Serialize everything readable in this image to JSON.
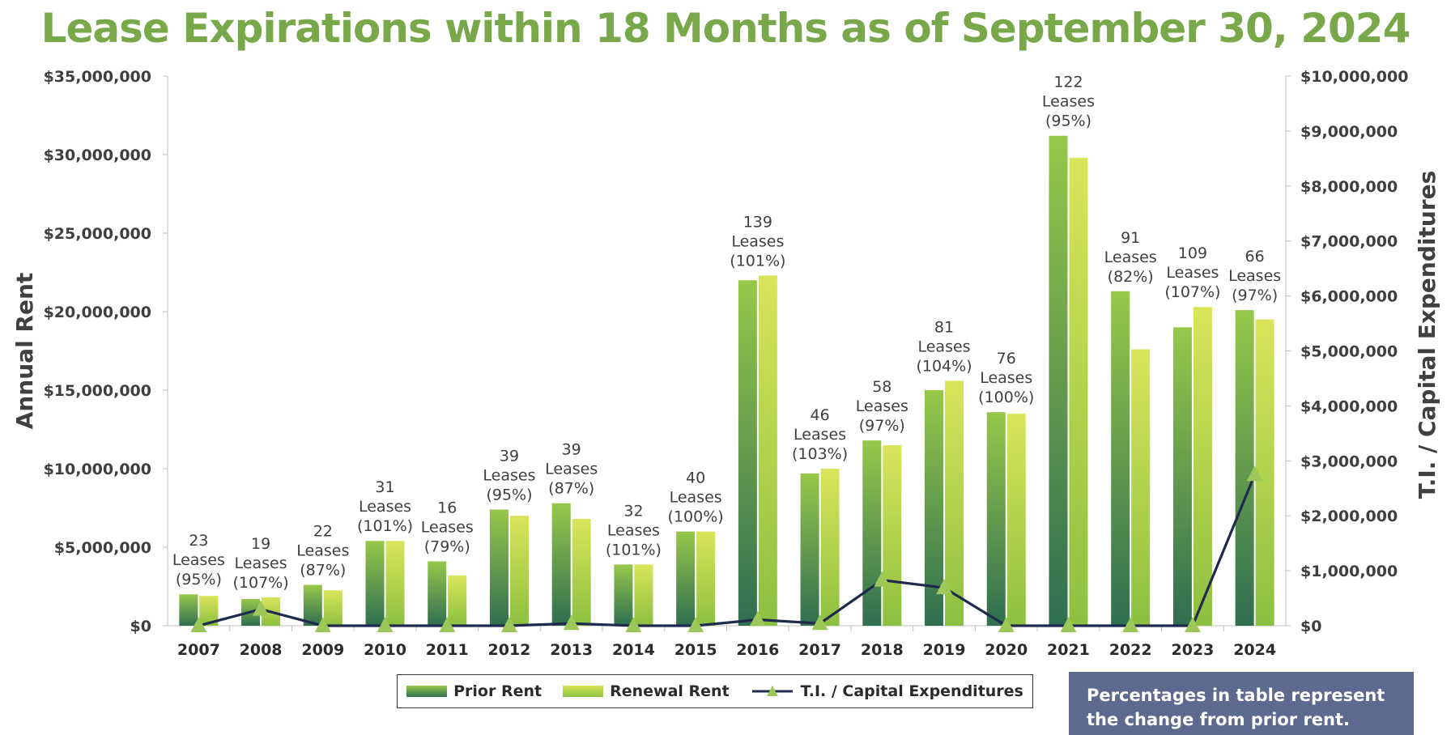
{
  "chart_data": {
    "type": "bar",
    "title": "Lease Expirations within 18 Months as of September 30, 2024",
    "ylabel": "Annual Rent",
    "y2label": "T.I. / Capital Expenditures",
    "ylim": [
      0,
      35000000
    ],
    "y2lim": [
      0,
      10000000
    ],
    "yticks": [
      "$0",
      "$5,000,000",
      "$10,000,000",
      "$15,000,000",
      "$20,000,000",
      "$25,000,000",
      "$30,000,000",
      "$35,000,000"
    ],
    "y2ticks": [
      "$0",
      "$1,000,000",
      "$2,000,000",
      "$3,000,000",
      "$4,000,000",
      "$5,000,000",
      "$6,000,000",
      "$7,000,000",
      "$8,000,000",
      "$9,000,000",
      "$10,000,000"
    ],
    "categories": [
      "2007",
      "2008",
      "2009",
      "2010",
      "2011",
      "2012",
      "2013",
      "2014",
      "2015",
      "2016",
      "2017",
      "2018",
      "2019",
      "2020",
      "2021",
      "2022",
      "2023",
      "2024"
    ],
    "series": [
      {
        "name": "Prior Rent",
        "axis": "left",
        "kind": "bar",
        "values": [
          2000000,
          1700000,
          2600000,
          5400000,
          4100000,
          7400000,
          7800000,
          3900000,
          6000000,
          22000000,
          9700000,
          11800000,
          15000000,
          13600000,
          31200000,
          21300000,
          19000000,
          20100000
        ]
      },
      {
        "name": "Renewal Rent",
        "axis": "left",
        "kind": "bar",
        "values": [
          1900000,
          1800000,
          2250000,
          5400000,
          3200000,
          7000000,
          6800000,
          3900000,
          6000000,
          22300000,
          10000000,
          11500000,
          15600000,
          13500000,
          29800000,
          17600000,
          20300000,
          19500000
        ]
      },
      {
        "name": "T.I. / Capital Expenditures",
        "axis": "right",
        "kind": "line",
        "values": [
          0,
          300000,
          0,
          0,
          0,
          0,
          40000,
          0,
          0,
          110000,
          40000,
          830000,
          690000,
          0,
          0,
          0,
          0,
          2750000
        ]
      }
    ],
    "bar_labels": [
      [
        "23",
        "Leases",
        "(95%)"
      ],
      [
        "19",
        "Leases",
        "(107%)"
      ],
      [
        "22",
        "Leases",
        "(87%)"
      ],
      [
        "31",
        "Leases",
        "(101%)"
      ],
      [
        "16",
        "Leases",
        "(79%)"
      ],
      [
        "39",
        "Leases",
        "(95%)"
      ],
      [
        "39",
        "Leases",
        "(87%)"
      ],
      [
        "32",
        "Leases",
        "(101%)"
      ],
      [
        "40",
        "Leases",
        "(100%)"
      ],
      [
        "139",
        "Leases",
        "(101%)"
      ],
      [
        "46",
        "Leases",
        "(103%)"
      ],
      [
        "58",
        "Leases",
        "(97%)"
      ],
      [
        "81",
        "Leases",
        "(104%)"
      ],
      [
        "76",
        "Leases",
        "(100%)"
      ],
      [
        "122",
        "Leases",
        "(95%)"
      ],
      [
        "91",
        "Leases",
        "(82%)"
      ],
      [
        "109",
        "Leases",
        "(107%)"
      ],
      [
        "66",
        "Leases",
        "(97%)"
      ]
    ],
    "grid": false,
    "legend_position": "bottom",
    "colors": {
      "title": "#79a84b",
      "prior_top": "#97c84a",
      "prior_bottom": "#2f6e50",
      "renewal_top": "#d9e55a",
      "renewal_bottom": "#8cc040",
      "line": "#1f2a4d",
      "marker": "#9cc85a",
      "note_bg": "#5b6a8e"
    }
  },
  "legend": {
    "prior": "Prior Rent",
    "renewal": "Renewal Rent",
    "ti": "T.I. / Capital Expenditures"
  },
  "note": {
    "line1": "Percentages in table represent",
    "line2": "the change from prior rent."
  }
}
